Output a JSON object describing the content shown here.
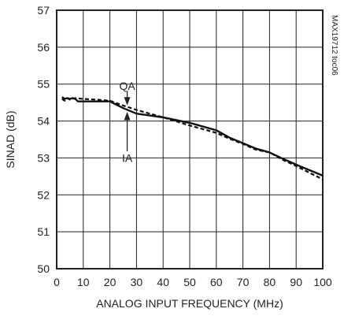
{
  "chart_data": {
    "type": "line",
    "title": "",
    "xlabel": "ANALOG INPUT FREQUENCY (MHz)",
    "ylabel": "SINAD (dB)",
    "xlim": [
      0,
      100
    ],
    "ylim": [
      50,
      57
    ],
    "xticks": [
      0,
      10,
      20,
      30,
      40,
      50,
      60,
      70,
      80,
      90,
      100
    ],
    "yticks": [
      50,
      51,
      52,
      53,
      54,
      55,
      56,
      57
    ],
    "grid": true,
    "series": [
      {
        "name": "IA",
        "style": "solid",
        "x": [
          2,
          3,
          4,
          5,
          6,
          7,
          8,
          10,
          15,
          20,
          25,
          30,
          40,
          50,
          60,
          65,
          70,
          75,
          80,
          85,
          90,
          95,
          100
        ],
        "y": [
          54.65,
          54.6,
          54.62,
          54.6,
          54.62,
          54.6,
          54.53,
          54.53,
          54.53,
          54.53,
          54.35,
          54.2,
          54.1,
          53.95,
          53.75,
          53.55,
          53.4,
          53.25,
          53.15,
          52.98,
          52.82,
          52.67,
          52.52
        ]
      },
      {
        "name": "QA",
        "style": "dashed",
        "x": [
          2,
          3,
          4,
          5,
          7,
          10,
          15,
          20,
          25,
          30,
          40,
          50,
          60,
          65,
          70,
          75,
          80,
          85,
          90,
          95,
          100
        ],
        "y": [
          54.6,
          54.55,
          54.62,
          54.58,
          54.62,
          54.6,
          54.58,
          54.55,
          54.42,
          54.3,
          54.1,
          53.88,
          53.68,
          53.52,
          53.38,
          53.22,
          53.15,
          52.95,
          52.78,
          52.6,
          52.42
        ]
      }
    ],
    "annotations": [
      "QA",
      "IA"
    ],
    "code_label": "MAX19712 toc06"
  }
}
